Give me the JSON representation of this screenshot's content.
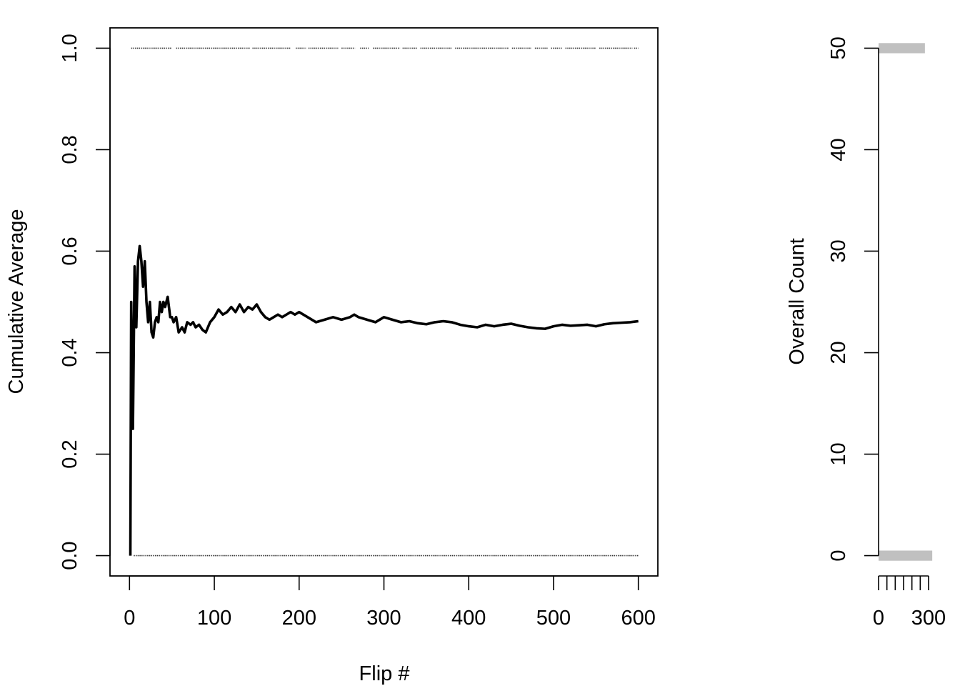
{
  "chart_data": [
    {
      "type": "line",
      "title": "",
      "xlabel": "Flip #",
      "ylabel": "Cumulative Average",
      "xlim": [
        -23,
        623
      ],
      "ylim": [
        -0.04,
        1.04
      ],
      "xticks": [
        0,
        100,
        200,
        300,
        400,
        500,
        600
      ],
      "xtick_labels": [
        "0",
        "100",
        "200",
        "300",
        "400",
        "500",
        "600"
      ],
      "yticks": [
        0.0,
        0.2,
        0.4,
        0.6,
        0.8,
        1.0
      ],
      "ytick_labels": [
        "0.0",
        "0.2",
        "0.4",
        "0.6",
        "0.8",
        "1.0"
      ],
      "grid": false,
      "line_color": "#000000",
      "series": [
        {
          "x": [
            1,
            2,
            4,
            6,
            8,
            10,
            12,
            14,
            16,
            18,
            20,
            22,
            24,
            26,
            28,
            30,
            32,
            34,
            36,
            38,
            40,
            42,
            45,
            48,
            50,
            52,
            55,
            58,
            62,
            65,
            68,
            72,
            75,
            78,
            82,
            86,
            90,
            95,
            100,
            105,
            110,
            115,
            120,
            125,
            130,
            135,
            140,
            145,
            150,
            155,
            160,
            165,
            170,
            175,
            180,
            185,
            190,
            195,
            200,
            210,
            220,
            230,
            240,
            250,
            260,
            265,
            270,
            280,
            290,
            300,
            310,
            320,
            330,
            340,
            350,
            360,
            370,
            380,
            390,
            400,
            410,
            420,
            430,
            440,
            450,
            460,
            470,
            480,
            490,
            500,
            510,
            520,
            530,
            540,
            550,
            560,
            570,
            580,
            590,
            600
          ],
          "y": [
            0.0,
            0.5,
            0.25,
            0.57,
            0.45,
            0.58,
            0.61,
            0.58,
            0.53,
            0.58,
            0.5,
            0.46,
            0.5,
            0.44,
            0.43,
            0.46,
            0.47,
            0.46,
            0.5,
            0.48,
            0.5,
            0.49,
            0.51,
            0.47,
            0.47,
            0.46,
            0.47,
            0.44,
            0.45,
            0.44,
            0.46,
            0.455,
            0.46,
            0.45,
            0.455,
            0.445,
            0.44,
            0.46,
            0.47,
            0.485,
            0.475,
            0.48,
            0.49,
            0.48,
            0.495,
            0.48,
            0.49,
            0.485,
            0.495,
            0.48,
            0.47,
            0.465,
            0.47,
            0.475,
            0.47,
            0.475,
            0.48,
            0.475,
            0.48,
            0.47,
            0.46,
            0.465,
            0.47,
            0.465,
            0.47,
            0.475,
            0.47,
            0.465,
            0.46,
            0.47,
            0.465,
            0.46,
            0.462,
            0.458,
            0.456,
            0.46,
            0.462,
            0.46,
            0.455,
            0.452,
            0.45,
            0.455,
            0.452,
            0.455,
            0.457,
            0.453,
            0.45,
            0.448,
            0.447,
            0.452,
            0.455,
            0.453,
            0.454,
            0.455,
            0.452,
            0.456,
            0.458,
            0.459,
            0.46,
            0.462
          ]
        }
      ],
      "rug": {
        "y_values": [
          0,
          1
        ],
        "top_ranges": [
          [
            2,
            50
          ],
          [
            55,
            142
          ],
          [
            145,
            190
          ],
          [
            196,
            208
          ],
          [
            211,
            246
          ],
          [
            250,
            266
          ],
          [
            272,
            282
          ],
          [
            287,
            319
          ],
          [
            322,
            339
          ],
          [
            343,
            380
          ],
          [
            384,
            447
          ],
          [
            451,
            474
          ],
          [
            478,
            493
          ],
          [
            497,
            510
          ],
          [
            514,
            550
          ],
          [
            554,
            593
          ],
          [
            595,
            600
          ]
        ],
        "bottom_ranges": [
          [
            5,
            600
          ]
        ]
      }
    },
    {
      "type": "bar",
      "orientation": "horizontal",
      "title": "",
      "ylabel": "Overall Count",
      "xlabel": "",
      "bar_color": "#c0c0c0",
      "categories": [
        "0",
        "1"
      ],
      "bar_positions": [
        0,
        50
      ],
      "values": [
        322,
        278
      ],
      "ylim": [
        -2,
        52
      ],
      "xlim": [
        0,
        300
      ],
      "yticks": [
        0,
        10,
        20,
        30,
        40,
        50
      ],
      "ytick_labels": [
        "0",
        "10",
        "20",
        "30",
        "40",
        "50"
      ],
      "xticks": [
        0,
        50,
        100,
        150,
        200,
        250,
        300
      ],
      "xtick_labels": [
        "0",
        "",
        "",
        "",
        "",
        "",
        "300"
      ]
    }
  ]
}
